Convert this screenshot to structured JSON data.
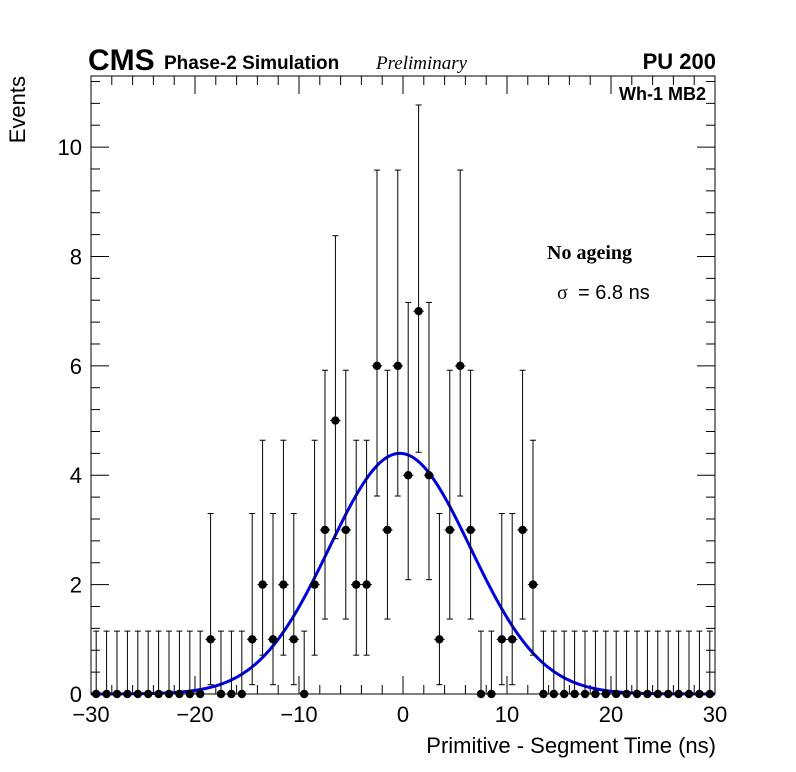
{
  "header": {
    "experiment": "CMS",
    "subtitle": "Phase-2 Simulation",
    "status": "Preliminary",
    "pileup": "PU 200",
    "region": "Wh-1 MB2"
  },
  "annotations": {
    "scenario": "No ageing",
    "sigma_symbol": "σ",
    "sigma_text": "= 6.8 ns"
  },
  "chart_data": {
    "type": "histogram",
    "xlabel": "Primitive - Segment Time (ns)",
    "ylabel": "Events",
    "xlim": [
      -30,
      30
    ],
    "ylim": [
      0,
      11.3
    ],
    "x_ticks": [
      -30,
      -20,
      -10,
      0,
      10,
      20,
      30
    ],
    "x_tick_labels": [
      "−30",
      "−20",
      "−10",
      "0",
      "10",
      "20",
      "30"
    ],
    "y_ticks": [
      0,
      2,
      4,
      6,
      8,
      10
    ],
    "y_tick_labels": [
      "0",
      "2",
      "4",
      "6",
      "8",
      "10"
    ],
    "grid": false,
    "bin_width": 1,
    "series": [
      {
        "kind": "points_with_errors",
        "color": "#000000",
        "x": [
          -29.5,
          -28.5,
          -27.5,
          -26.5,
          -25.5,
          -24.5,
          -23.5,
          -22.5,
          -21.5,
          -20.5,
          -19.5,
          -18.5,
          -17.5,
          -16.5,
          -15.5,
          -14.5,
          -13.5,
          -12.5,
          -11.5,
          -10.5,
          -9.5,
          -8.5,
          -7.5,
          -6.5,
          -5.5,
          -4.5,
          -3.5,
          -2.5,
          -1.5,
          -0.5,
          0.5,
          1.5,
          2.5,
          3.5,
          4.5,
          5.5,
          6.5,
          7.5,
          8.5,
          9.5,
          10.5,
          11.5,
          12.5,
          13.5,
          14.5,
          15.5,
          16.5,
          17.5,
          18.5,
          19.5,
          20.5,
          21.5,
          22.5,
          23.5,
          24.5,
          25.5,
          26.5,
          27.5,
          28.5,
          29.5
        ],
        "values": [
          0,
          0,
          0,
          0,
          0,
          0,
          0,
          0,
          0,
          0,
          0,
          1,
          0,
          0,
          0,
          1,
          2,
          1,
          2,
          1,
          0,
          2,
          3,
          5,
          3,
          2,
          2,
          6,
          3,
          6,
          4,
          7,
          4,
          1,
          3,
          6,
          3,
          0,
          0,
          1,
          1,
          3,
          2,
          0,
          0,
          0,
          0,
          0,
          0,
          0,
          0,
          0,
          0,
          0,
          0,
          0,
          0,
          0,
          0,
          0
        ],
        "err_low": [
          0,
          0,
          0,
          0,
          0,
          0,
          0,
          0,
          0,
          0,
          0,
          0.83,
          0,
          0,
          0,
          0.83,
          1.29,
          0.83,
          1.29,
          0.83,
          0,
          1.29,
          1.63,
          2.16,
          1.63,
          1.29,
          1.29,
          2.38,
          1.63,
          2.38,
          1.91,
          2.58,
          1.91,
          0.83,
          1.63,
          2.38,
          1.63,
          0,
          0,
          0.83,
          0.83,
          1.63,
          1.29,
          0,
          0,
          0,
          0,
          0,
          0,
          0,
          0,
          0,
          0,
          0,
          0,
          0,
          0,
          0,
          0,
          0
        ],
        "err_high": [
          1.15,
          1.15,
          1.15,
          1.15,
          1.15,
          1.15,
          1.15,
          1.15,
          1.15,
          1.15,
          1.15,
          2.3,
          1.15,
          1.15,
          1.15,
          2.3,
          2.64,
          2.3,
          2.64,
          2.3,
          1.15,
          2.64,
          2.92,
          3.38,
          2.92,
          2.64,
          2.64,
          3.58,
          2.92,
          3.58,
          3.16,
          3.77,
          3.16,
          2.3,
          2.92,
          3.58,
          2.92,
          1.15,
          1.15,
          2.3,
          2.3,
          2.92,
          2.64,
          1.15,
          1.15,
          1.15,
          1.15,
          1.15,
          1.15,
          1.15,
          1.15,
          1.15,
          1.15,
          1.15,
          1.15,
          1.15,
          1.15,
          1.15,
          1.15,
          1.15
        ]
      },
      {
        "kind": "fit_curve",
        "color": "#0000dd",
        "function": "gaussian",
        "amplitude": 4.4,
        "mean": -0.3,
        "sigma": 6.8
      }
    ]
  }
}
